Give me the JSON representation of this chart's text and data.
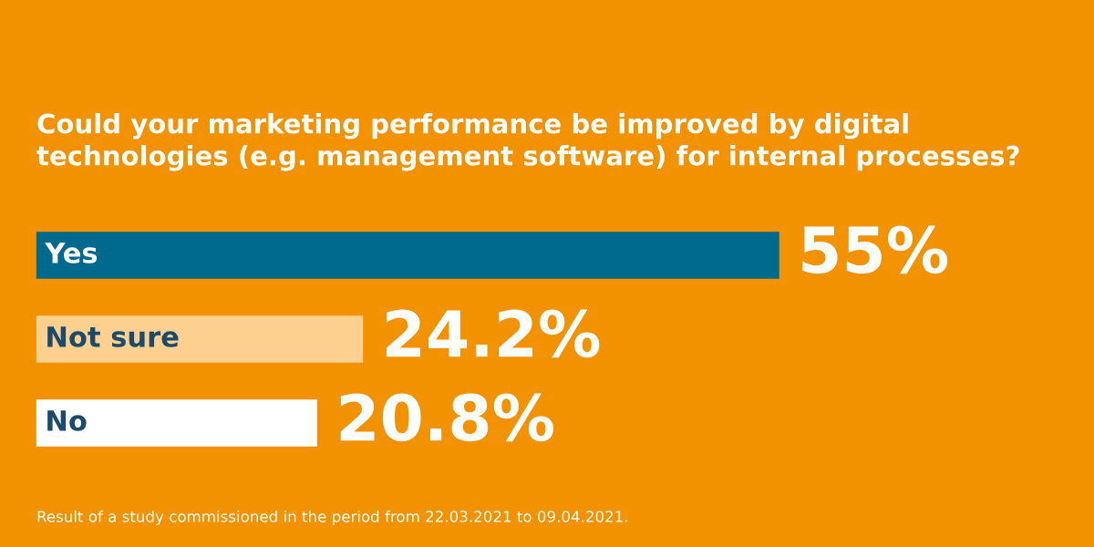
{
  "chart_data": {
    "type": "bar",
    "orientation": "horizontal",
    "title": "Could your marketing performance be improved by digital technologies (e.g. management software) for internal processes?",
    "categories": [
      "Yes",
      "Not sure",
      "No"
    ],
    "values": [
      55,
      24.2,
      20.8
    ],
    "colors": [
      "#006a8e",
      "#fdd08f",
      "#ffffff"
    ],
    "value_labels": [
      "55%",
      "24.2%",
      "20.8%"
    ],
    "data_labels": true,
    "annotations": [
      "Result of a study commissioned in the period from 22.03.2021 to 09.04.2021."
    ]
  }
}
